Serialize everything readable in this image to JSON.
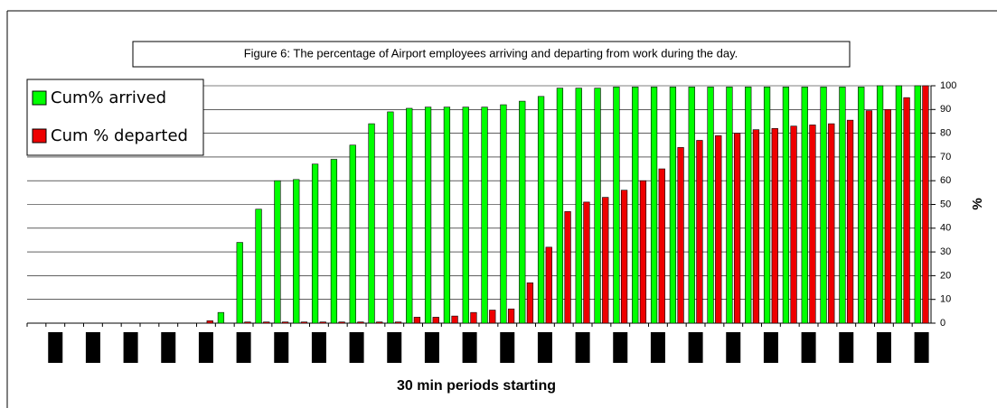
{
  "chart_data": {
    "type": "bar",
    "title": "Figure 6:  The percentage of Airport employees arriving and departing from work during the day.",
    "x_label": "30 min periods starting",
    "y_label": "%",
    "categories": [
      null,
      null,
      null,
      null,
      null,
      null,
      null,
      null,
      null,
      null,
      null,
      null,
      null,
      null,
      null,
      null,
      null,
      null,
      null,
      null,
      null,
      null,
      null,
      null,
      null,
      null,
      null,
      null,
      null,
      null,
      null,
      null,
      null,
      null,
      null,
      null,
      null,
      null,
      null,
      null,
      null,
      null,
      null,
      null,
      null,
      null,
      null,
      null
    ],
    "series": [
      {
        "name": "Cum% arrived",
        "color": "#00ff00",
        "values": [
          0,
          0,
          0,
          0,
          0,
          0,
          0,
          0,
          0,
          0,
          4.5,
          34,
          48,
          60,
          60.5,
          67,
          69,
          75,
          84,
          89,
          90.5,
          91,
          91,
          91,
          91,
          92,
          93.5,
          95.5,
          99,
          99,
          99,
          99.5,
          99.5,
          99.5,
          99.5,
          99.5,
          99.5,
          99.5,
          99.5,
          99.5,
          99.5,
          99.5,
          99.5,
          99.5,
          99.5,
          100,
          100,
          100
        ]
      },
      {
        "name": "Cum % departed",
        "color": "#ee0000",
        "values": [
          0,
          0,
          0,
          0,
          0,
          0,
          0,
          0,
          0,
          1,
          0,
          0.5,
          0.5,
          0.5,
          0.5,
          0.5,
          0.5,
          0.5,
          0.5,
          0.5,
          2.5,
          2.5,
          3,
          4.5,
          5.5,
          6,
          17,
          32,
          47,
          51,
          53,
          56,
          60,
          65,
          74,
          77,
          79,
          80,
          81.5,
          82,
          83,
          83.5,
          84,
          85.5,
          89.5,
          90,
          95,
          100
        ]
      }
    ],
    "ylim": [
      0,
      100
    ],
    "yticks": [
      0,
      10,
      20,
      30,
      40,
      50,
      60,
      70,
      80,
      90,
      100
    ],
    "grid": true,
    "legend": "top-left"
  }
}
